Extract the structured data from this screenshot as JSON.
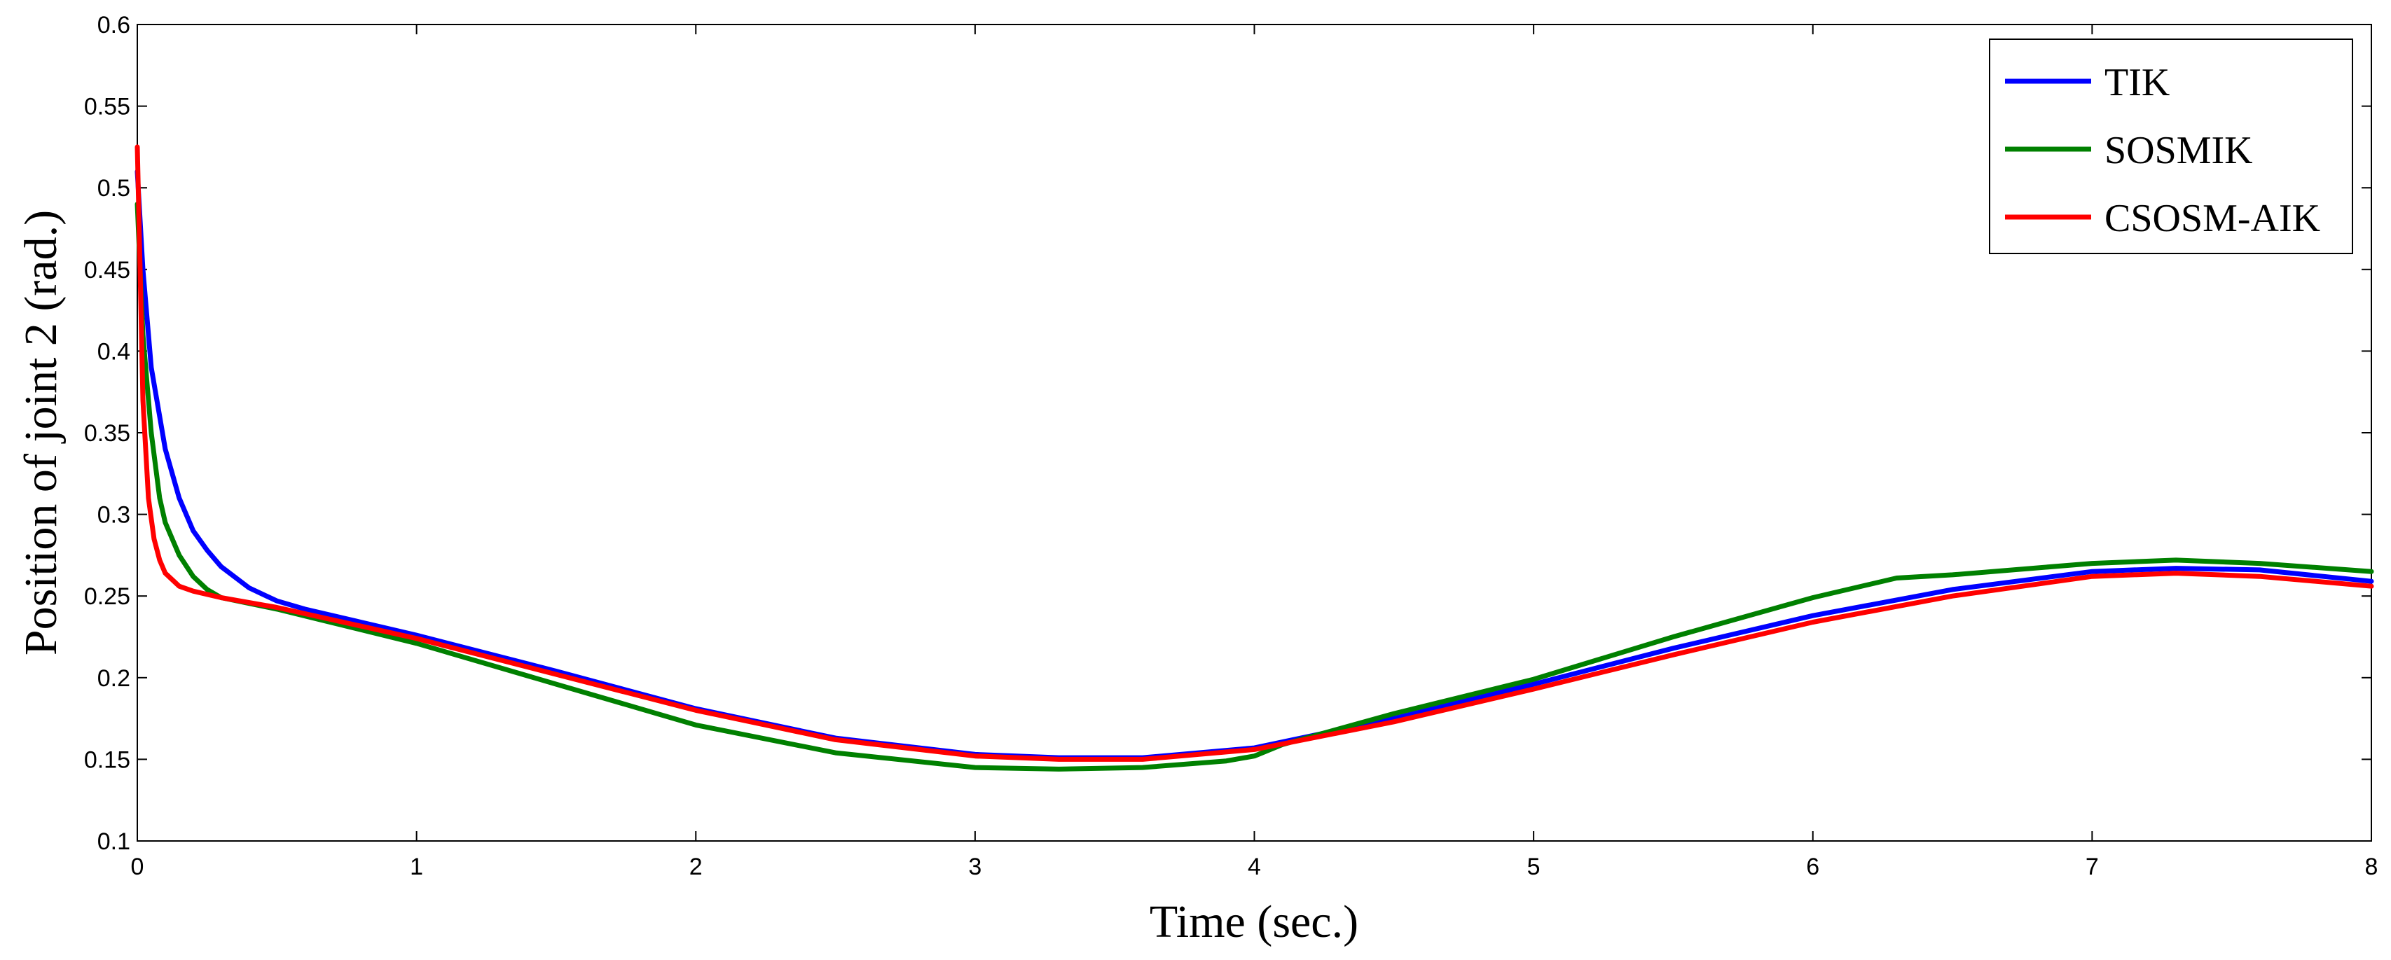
{
  "chart_data": {
    "type": "line",
    "title": "",
    "xlabel": "Time (sec.)",
    "ylabel": "Position of joint 2 (rad.)",
    "xlim": [
      0,
      8
    ],
    "ylim": [
      0.1,
      0.6
    ],
    "x_ticks": [
      "0",
      "1",
      "2",
      "3",
      "4",
      "5",
      "6",
      "7",
      "8"
    ],
    "y_ticks": [
      "0.1",
      "0.15",
      "0.2",
      "0.25",
      "0.3",
      "0.35",
      "0.4",
      "0.45",
      "0.5",
      "0.55",
      "0.6"
    ],
    "grid": false,
    "legend_position": "top-right",
    "series": [
      {
        "name": "TIK",
        "color": "#0000ff",
        "x": [
          0,
          0.02,
          0.05,
          0.1,
          0.15,
          0.2,
          0.25,
          0.3,
          0.4,
          0.5,
          0.6,
          0.8,
          1.0,
          1.5,
          2.0,
          2.5,
          3.0,
          3.3,
          3.6,
          4.0,
          4.5,
          5.0,
          5.5,
          6.0,
          6.5,
          7.0,
          7.3,
          7.6,
          8.0
        ],
        "y": [
          0.51,
          0.45,
          0.39,
          0.34,
          0.31,
          0.29,
          0.278,
          0.268,
          0.255,
          0.247,
          0.242,
          0.234,
          0.226,
          0.204,
          0.181,
          0.163,
          0.153,
          0.151,
          0.151,
          0.157,
          0.175,
          0.196,
          0.218,
          0.238,
          0.254,
          0.265,
          0.267,
          0.266,
          0.259
        ]
      },
      {
        "name": "SOSMIK",
        "color": "#008000",
        "x": [
          0,
          0.02,
          0.05,
          0.08,
          0.1,
          0.15,
          0.2,
          0.25,
          0.3,
          0.5,
          1.0,
          1.5,
          2.0,
          2.5,
          3.0,
          3.3,
          3.6,
          3.9,
          4.0,
          4.1,
          4.5,
          5.0,
          5.5,
          6.0,
          6.3,
          6.5,
          7.0,
          7.3,
          7.6,
          8.0
        ],
        "y": [
          0.49,
          0.41,
          0.35,
          0.31,
          0.295,
          0.275,
          0.262,
          0.254,
          0.249,
          0.242,
          0.221,
          0.196,
          0.171,
          0.154,
          0.145,
          0.144,
          0.145,
          0.149,
          0.152,
          0.159,
          0.178,
          0.199,
          0.225,
          0.249,
          0.261,
          0.263,
          0.27,
          0.272,
          0.27,
          0.265
        ]
      },
      {
        "name": "CSOSM-AIK",
        "color": "#ff0000",
        "x": [
          0,
          0.01,
          0.02,
          0.04,
          0.06,
          0.08,
          0.1,
          0.15,
          0.2,
          0.3,
          0.5,
          1.0,
          1.5,
          2.0,
          2.5,
          3.0,
          3.3,
          3.6,
          4.0,
          4.5,
          5.0,
          5.5,
          6.0,
          6.5,
          7.0,
          7.3,
          7.6,
          8.0
        ],
        "y": [
          0.525,
          0.45,
          0.37,
          0.31,
          0.285,
          0.272,
          0.264,
          0.256,
          0.253,
          0.249,
          0.243,
          0.224,
          0.202,
          0.18,
          0.162,
          0.152,
          0.15,
          0.15,
          0.156,
          0.173,
          0.193,
          0.214,
          0.234,
          0.25,
          0.262,
          0.264,
          0.262,
          0.256
        ]
      }
    ]
  }
}
